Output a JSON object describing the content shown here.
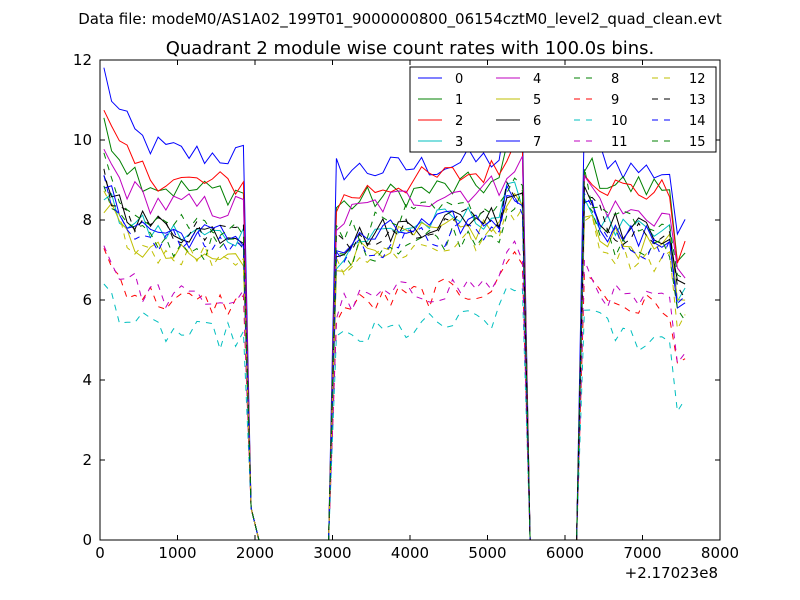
{
  "figure": {
    "suptitle": "Data file: modeM0/AS1A02_199T01_9000000800_06154cztM0_level2_quad_clean.evt",
    "title": "Quadrant 2 module wise count rates with 100.0s bins.",
    "x_offset_label": "+2.17023e8"
  },
  "chart_data": {
    "type": "line",
    "title": "Quadrant 2 module wise count rates with 100.0s bins.",
    "xlabel": "",
    "ylabel": "",
    "xlim": [
      0,
      8000
    ],
    "ylim": [
      0,
      12
    ],
    "x_ticks": [
      0,
      1000,
      2000,
      3000,
      4000,
      5000,
      6000,
      7000,
      8000
    ],
    "x_tick_labels": [
      "0",
      "1000",
      "2000",
      "3000",
      "4000",
      "5000",
      "6000",
      "7000",
      "8000"
    ],
    "y_ticks": [
      0,
      2,
      4,
      6,
      8,
      10,
      12
    ],
    "y_tick_labels": [
      "0",
      "2",
      "4",
      "6",
      "8",
      "10",
      "12"
    ],
    "x_offset": "+2.17023e8",
    "legend_position": "top-right",
    "legend_columns": 4,
    "bin_width_s": 100,
    "segments": [
      {
        "start": 50,
        "end": 1850
      },
      {
        "start": 3050,
        "end": 5450
      },
      {
        "start": 6250,
        "end": 7550
      }
    ],
    "gap_points": [
      [
        1950,
        0.8
      ],
      [
        2050,
        0
      ],
      [
        2950,
        0
      ],
      [
        5550,
        0
      ],
      [
        6150,
        0
      ]
    ],
    "series": [
      {
        "name": "0",
        "style": "solid",
        "color": "#0000ff",
        "segment_levels": [
          9.6,
          9.1,
          9.2
        ],
        "segment_start_peaks": [
          11.7,
          9.3,
          10.6
        ]
      },
      {
        "name": "1",
        "style": "solid",
        "color": "#008000",
        "segment_levels": [
          8.7,
          8.5,
          8.8
        ],
        "segment_start_peaks": [
          10.6,
          8.3,
          9.5
        ]
      },
      {
        "name": "2",
        "style": "solid",
        "color": "#ff0000",
        "segment_levels": [
          8.9,
          8.8,
          8.7
        ],
        "segment_start_peaks": [
          10.6,
          8.4,
          9.4
        ]
      },
      {
        "name": "3",
        "style": "solid",
        "color": "#00bfbf",
        "segment_levels": [
          7.6,
          7.7,
          7.6
        ],
        "segment_start_peaks": [
          8.6,
          7.1,
          8.6
        ]
      },
      {
        "name": "4",
        "style": "solid",
        "color": "#bf00bf",
        "segment_levels": [
          8.3,
          8.4,
          8.1
        ],
        "segment_start_peaks": [
          9.7,
          7.9,
          9.1
        ]
      },
      {
        "name": "5",
        "style": "solid",
        "color": "#bfbf00",
        "segment_levels": [
          7.0,
          7.4,
          7.3
        ],
        "segment_start_peaks": [
          8.5,
          6.9,
          8.4
        ]
      },
      {
        "name": "6",
        "style": "solid",
        "color": "#000000",
        "segment_levels": [
          7.7,
          7.7,
          7.7
        ],
        "segment_start_peaks": [
          9.2,
          7.3,
          8.9
        ]
      },
      {
        "name": "7",
        "style": "solid",
        "color": "#0000ff",
        "segment_levels": [
          7.6,
          7.6,
          7.5
        ],
        "segment_start_peaks": [
          8.9,
          7.2,
          8.7
        ]
      },
      {
        "name": "8",
        "style": "dashed",
        "color": "#008000",
        "segment_levels": [
          7.3,
          7.3,
          7.2
        ],
        "segment_start_peaks": [
          8.7,
          7.0,
          8.4
        ]
      },
      {
        "name": "9",
        "style": "dashed",
        "color": "#ff0000",
        "segment_levels": [
          5.9,
          5.9,
          5.8
        ],
        "segment_start_peaks": [
          7.2,
          5.7,
          6.8
        ]
      },
      {
        "name": "10",
        "style": "dashed",
        "color": "#00bfbf",
        "segment_levels": [
          5.1,
          5.1,
          5.0
        ],
        "segment_start_peaks": [
          6.4,
          4.9,
          6.0
        ]
      },
      {
        "name": "11",
        "style": "dashed",
        "color": "#bf00bf",
        "segment_levels": [
          6.0,
          6.0,
          5.9
        ],
        "segment_start_peaks": [
          7.4,
          5.8,
          6.9
        ]
      },
      {
        "name": "12",
        "style": "dashed",
        "color": "#bfbf00",
        "segment_levels": [
          7.1,
          7.1,
          7.0
        ],
        "segment_start_peaks": [
          8.6,
          6.9,
          8.3
        ]
      },
      {
        "name": "13",
        "style": "dashed",
        "color": "#000000",
        "segment_levels": [
          7.7,
          7.7,
          7.6
        ],
        "segment_start_peaks": [
          9.0,
          7.4,
          8.8
        ]
      },
      {
        "name": "14",
        "style": "dashed",
        "color": "#0000ff",
        "segment_levels": [
          7.4,
          7.3,
          7.3
        ],
        "segment_start_peaks": [
          8.8,
          7.1,
          8.6
        ]
      },
      {
        "name": "15",
        "style": "dashed",
        "color": "#008000",
        "segment_levels": [
          7.9,
          7.9,
          7.8
        ],
        "segment_start_peaks": [
          9.6,
          7.6,
          9.0
        ]
      }
    ]
  }
}
